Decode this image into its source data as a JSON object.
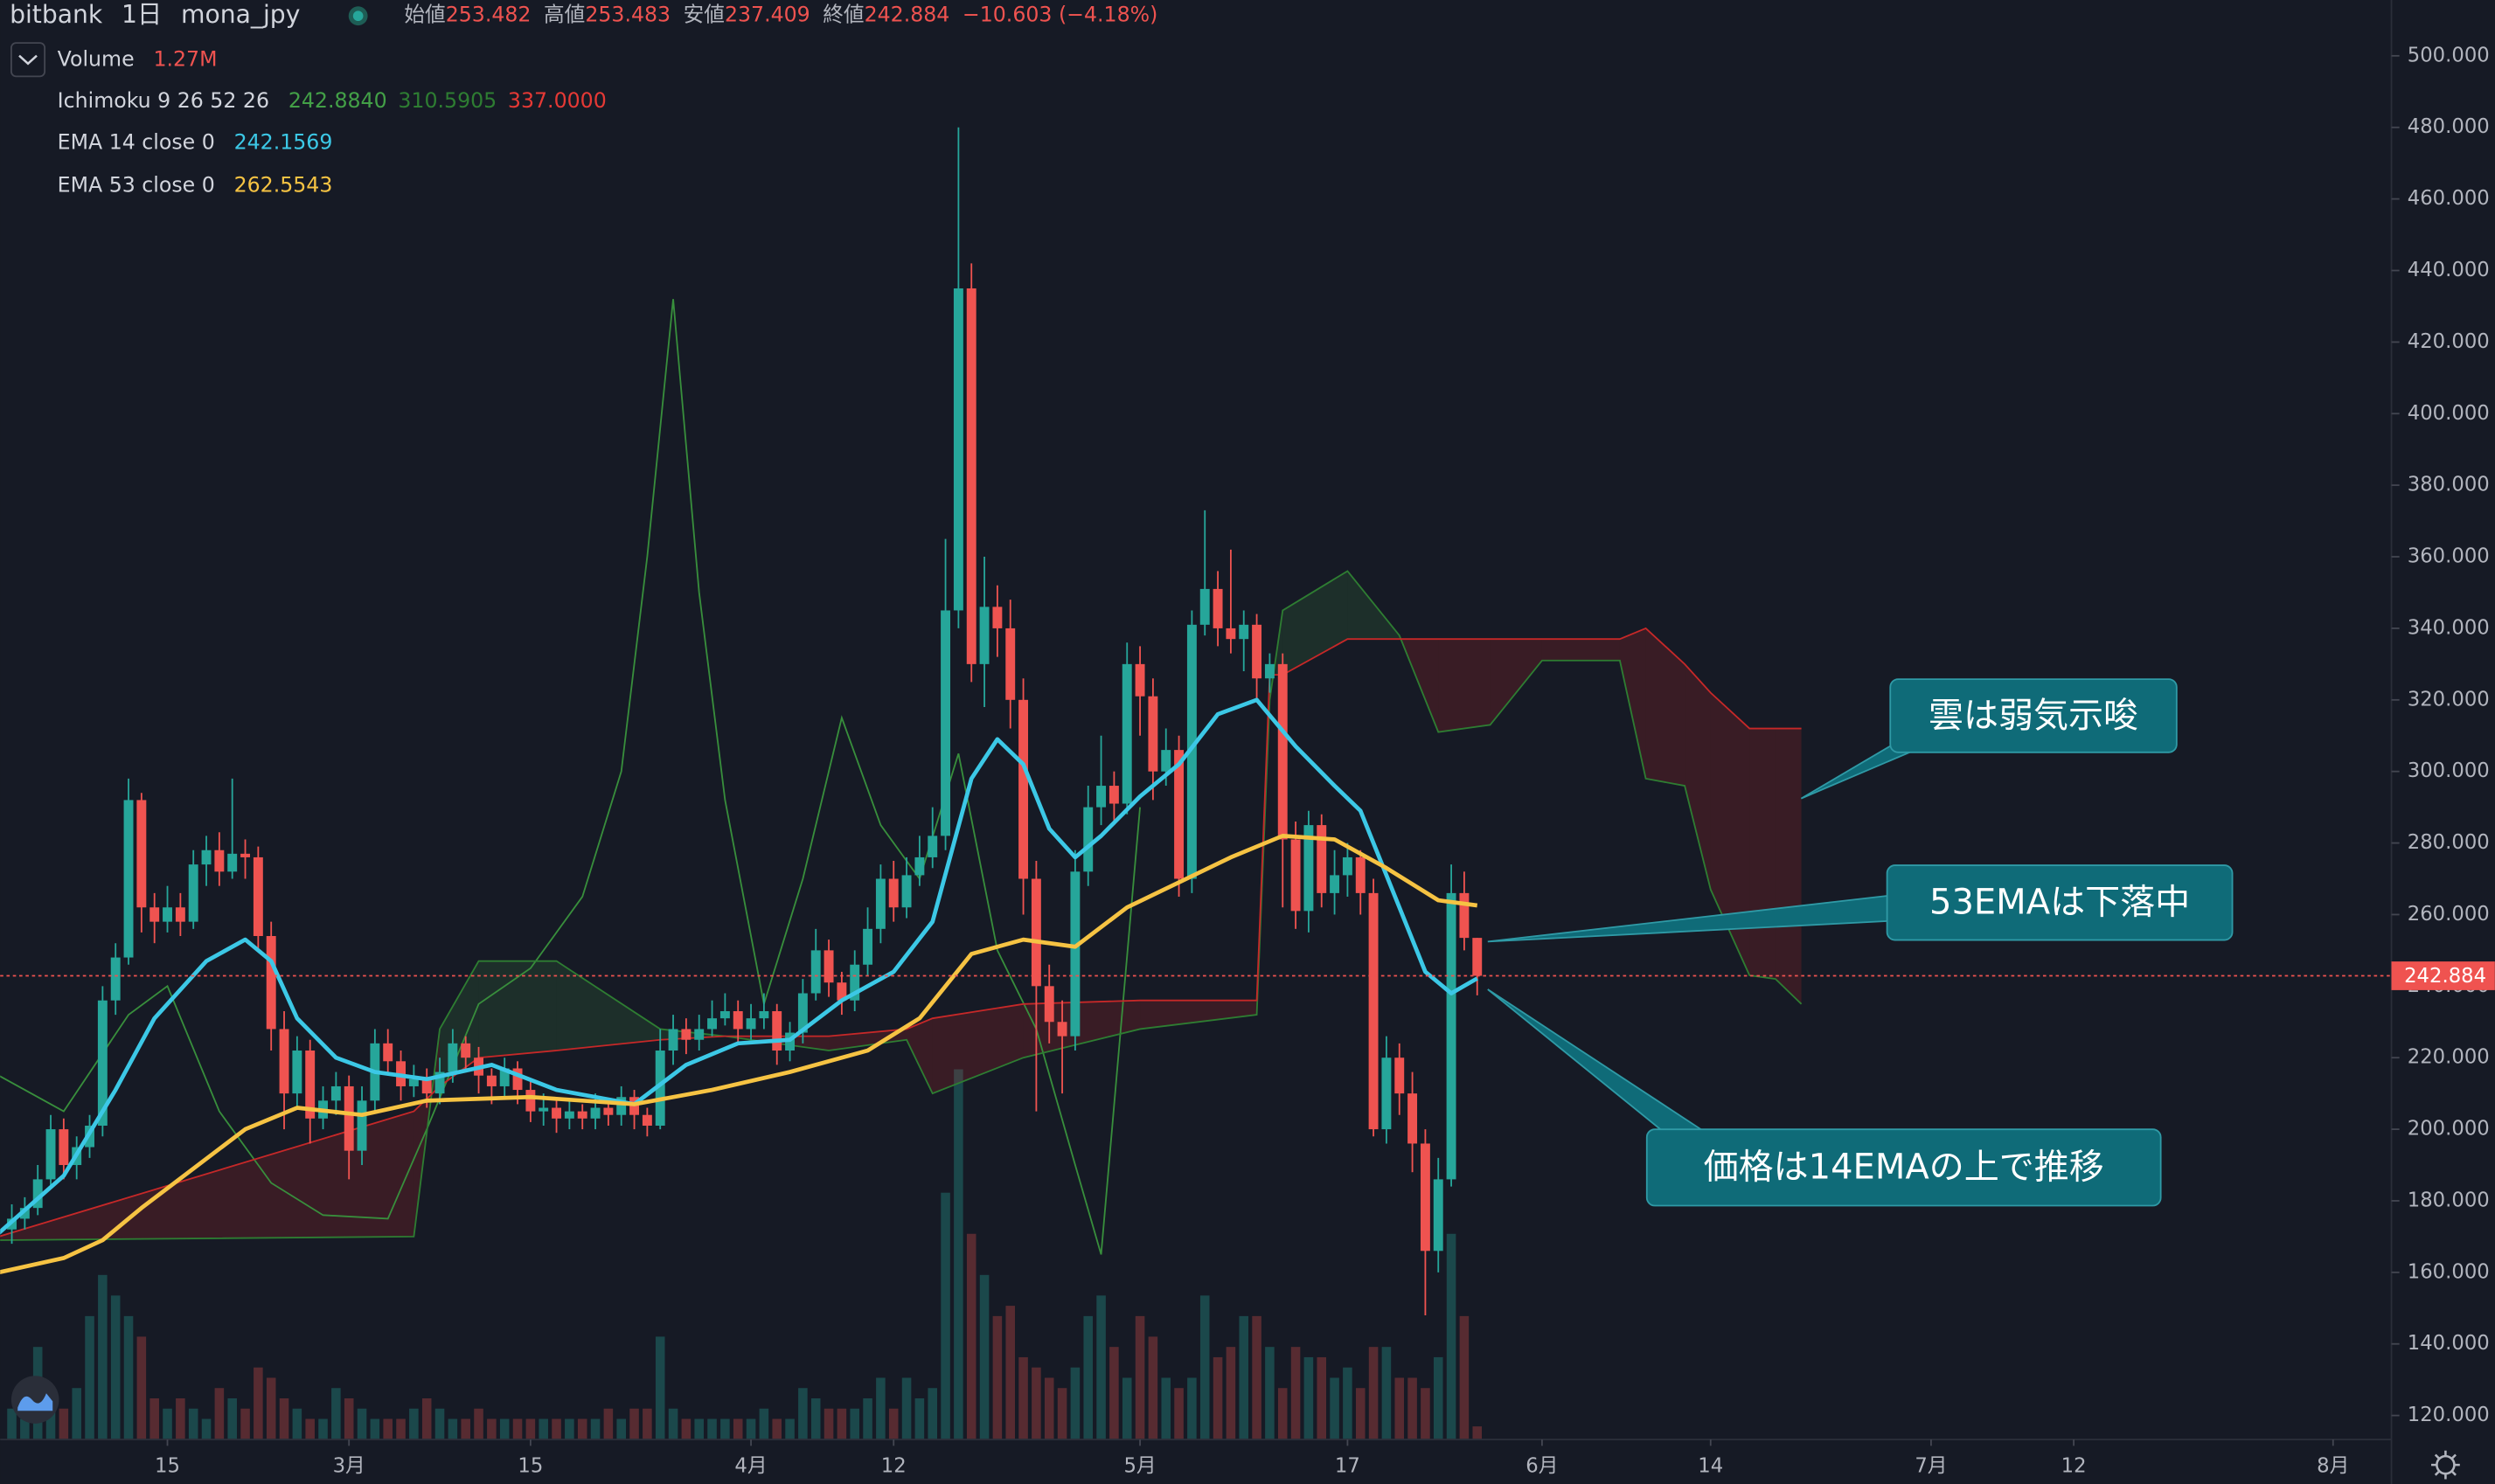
{
  "chart_data": {
    "type": "candlestick",
    "header": {
      "exchange": "bitbank",
      "interval": "1日",
      "symbol": "mona_jpy",
      "open_label": "始値",
      "open": 253.482,
      "high_label": "高値",
      "high": 253.483,
      "low_label": "安値",
      "low": 237.409,
      "close_label": "終値",
      "close": 242.884,
      "change": "−10.603 (−4.18%)"
    },
    "legend": [
      {
        "name": "Volume",
        "values": [
          {
            "value": 1.27,
            "label": "1.27M"
          }
        ],
        "colors": [
          "#ef5350"
        ]
      },
      {
        "name": "Ichimoku 9 26 52 26",
        "values": [
          {
            "value": 242.884,
            "label": "242.8840"
          },
          310.5905,
          {
            "value": 337,
            "label": "337.0000"
          }
        ],
        "colors": [
          "#43a047",
          "#2e7d32",
          "#e53935"
        ]
      },
      {
        "name": "EMA 14 close 0",
        "values": [
          242.1569
        ],
        "colors": [
          "#3cc8e6"
        ]
      },
      {
        "name": "EMA 53 close 0",
        "values": [
          262.5543
        ],
        "colors": [
          "#f6c343"
        ]
      }
    ],
    "colors": {
      "up": "#26a69a",
      "down": "#ef5350",
      "volume_up": "rgba(38,166,154,0.33)",
      "volume_down": "rgba(239,83,80,0.3)"
    },
    "xlim": [
      -12.9,
      171.5
    ],
    "ylim": [
      113.3,
      515.6
    ],
    "y2lim": [
      0,
      140
    ],
    "xticks": [
      {
        "value": 0,
        "label": "15"
      },
      {
        "value": 14,
        "label": "3月"
      },
      {
        "value": 28,
        "label": "15"
      },
      {
        "value": 45,
        "label": "4月"
      },
      {
        "value": 56,
        "label": "12"
      },
      {
        "value": 75,
        "label": "5月"
      },
      {
        "value": 91,
        "label": "17"
      },
      {
        "value": 106,
        "label": "6月"
      },
      {
        "value": 119,
        "label": "14"
      },
      {
        "value": 136,
        "label": "7月"
      },
      {
        "value": 147,
        "label": "12"
      },
      {
        "value": 167,
        "label": "8月"
      }
    ],
    "yticks": [
      {
        "value": 120,
        "label": "120.000"
      },
      {
        "value": 140,
        "label": "140.000"
      },
      {
        "value": 160,
        "label": "160.000"
      },
      {
        "value": 180,
        "label": "180.000"
      },
      {
        "value": 200,
        "label": "200.000"
      },
      {
        "value": 220,
        "label": "220.000"
      },
      {
        "value": 240,
        "label": "240.000"
      },
      {
        "value": 260,
        "label": "260.000"
      },
      {
        "value": 280,
        "label": "280.000"
      },
      {
        "value": 300,
        "label": "300.000"
      },
      {
        "value": 320,
        "label": "320.000"
      },
      {
        "value": 340,
        "label": "340.000"
      },
      {
        "value": 360,
        "label": "360.000"
      },
      {
        "value": 380,
        "label": "380.000"
      },
      {
        "value": 400,
        "label": "400.000"
      },
      {
        "value": 420,
        "label": "420.000"
      },
      {
        "value": 440,
        "label": "440.000"
      },
      {
        "value": 460,
        "label": "460.000"
      },
      {
        "value": 480,
        "label": "480.000"
      },
      {
        "value": 500,
        "label": "500.000"
      }
    ],
    "last_price": 242.884,
    "last_price_color": "#ef5350",
    "x": [
      -12,
      -11,
      -10,
      -9,
      -8,
      -7,
      -6,
      -5,
      -4,
      -3,
      -2,
      -1,
      0,
      1,
      2,
      3,
      4,
      5,
      6,
      7,
      8,
      9,
      10,
      11,
      12,
      13,
      14,
      15,
      16,
      17,
      18,
      19,
      20,
      21,
      22,
      23,
      24,
      25,
      26,
      27,
      28,
      29,
      30,
      31,
      32,
      33,
      34,
      35,
      36,
      37,
      38,
      39,
      40,
      41,
      42,
      43,
      44,
      45,
      46,
      47,
      48,
      49,
      50,
      51,
      52,
      53,
      54,
      55,
      56,
      57,
      58,
      59,
      60,
      61,
      62,
      63,
      64,
      65,
      66,
      67,
      68,
      69,
      70,
      71,
      72,
      73,
      74,
      75,
      76,
      77,
      78,
      79,
      80,
      81,
      82,
      83,
      84,
      85,
      86,
      87,
      88,
      89,
      90,
      91,
      92,
      93,
      94,
      95,
      96,
      97,
      98,
      99,
      100,
      101
    ],
    "ohlc": [
      [
        172,
        179,
        168,
        175
      ],
      [
        175,
        181,
        172,
        178
      ],
      [
        178,
        190,
        176,
        186
      ],
      [
        186,
        204,
        184,
        200
      ],
      [
        200,
        203,
        186,
        190
      ],
      [
        190,
        198,
        186,
        195
      ],
      [
        195,
        204,
        192,
        201
      ],
      [
        201,
        240,
        198,
        236
      ],
      [
        236,
        252,
        232,
        248
      ],
      [
        248,
        298,
        246,
        292
      ],
      [
        292,
        294,
        255,
        262
      ],
      [
        262,
        266,
        252,
        258
      ],
      [
        258,
        268,
        255,
        262
      ],
      [
        262,
        266,
        254,
        258
      ],
      [
        258,
        278,
        256,
        274
      ],
      [
        274,
        282,
        268,
        278
      ],
      [
        278,
        283,
        268,
        272
      ],
      [
        272,
        298,
        270,
        277
      ],
      [
        277,
        281,
        270,
        276
      ],
      [
        276,
        279,
        250,
        254
      ],
      [
        254,
        258,
        222,
        228
      ],
      [
        228,
        233,
        200,
        210
      ],
      [
        210,
        226,
        206,
        222
      ],
      [
        222,
        225,
        196,
        203
      ],
      [
        203,
        212,
        200,
        208
      ],
      [
        208,
        216,
        204,
        212
      ],
      [
        212,
        215,
        186,
        194
      ],
      [
        194,
        212,
        190,
        208
      ],
      [
        208,
        228,
        205,
        224
      ],
      [
        224,
        228,
        215,
        219
      ],
      [
        219,
        222,
        208,
        212
      ],
      [
        212,
        218,
        209,
        214
      ],
      [
        214,
        217,
        206,
        210
      ],
      [
        210,
        220,
        207,
        216
      ],
      [
        216,
        228,
        213,
        224
      ],
      [
        224,
        226,
        216,
        220
      ],
      [
        220,
        223,
        210,
        215
      ],
      [
        215,
        217,
        207,
        212
      ],
      [
        212,
        220,
        209,
        217
      ],
      [
        217,
        219,
        207,
        211
      ],
      [
        211,
        214,
        202,
        205
      ],
      [
        205,
        210,
        201,
        206
      ],
      [
        206,
        208,
        199,
        203
      ],
      [
        203,
        208,
        200,
        205
      ],
      [
        205,
        207,
        200,
        203
      ],
      [
        203,
        210,
        200,
        206
      ],
      [
        206,
        208,
        201,
        204
      ],
      [
        204,
        212,
        201,
        209
      ],
      [
        209,
        211,
        200,
        204
      ],
      [
        204,
        206,
        198,
        201
      ],
      [
        201,
        228,
        200,
        222
      ],
      [
        222,
        232,
        218,
        228
      ],
      [
        228,
        231,
        221,
        225
      ],
      [
        225,
        232,
        222,
        228
      ],
      [
        228,
        236,
        226,
        231
      ],
      [
        231,
        238,
        229,
        233
      ],
      [
        233,
        236,
        224,
        228
      ],
      [
        228,
        235,
        225,
        231
      ],
      [
        231,
        238,
        228,
        233
      ],
      [
        233,
        235,
        218,
        222
      ],
      [
        222,
        230,
        219,
        227
      ],
      [
        227,
        242,
        224,
        238
      ],
      [
        238,
        256,
        236,
        250
      ],
      [
        250,
        253,
        237,
        241
      ],
      [
        241,
        244,
        232,
        236
      ],
      [
        236,
        250,
        233,
        246
      ],
      [
        246,
        262,
        243,
        256
      ],
      [
        256,
        274,
        252,
        270
      ],
      [
        270,
        275,
        258,
        262
      ],
      [
        262,
        276,
        259,
        271
      ],
      [
        271,
        282,
        268,
        276
      ],
      [
        276,
        290,
        273,
        282
      ],
      [
        282,
        365,
        278,
        345
      ],
      [
        345,
        480,
        340,
        435
      ],
      [
        435,
        442,
        325,
        330
      ],
      [
        330,
        360,
        318,
        346
      ],
      [
        346,
        352,
        332,
        340
      ],
      [
        340,
        348,
        312,
        320
      ],
      [
        320,
        326,
        260,
        270
      ],
      [
        270,
        275,
        205,
        240
      ],
      [
        240,
        246,
        224,
        230
      ],
      [
        230,
        236,
        210,
        226
      ],
      [
        226,
        278,
        222,
        272
      ],
      [
        272,
        296,
        268,
        290
      ],
      [
        290,
        310,
        285,
        296
      ],
      [
        296,
        300,
        285,
        291
      ],
      [
        291,
        336,
        288,
        330
      ],
      [
        330,
        335,
        310,
        321
      ],
      [
        321,
        326,
        292,
        300
      ],
      [
        300,
        312,
        296,
        306
      ],
      [
        306,
        310,
        265,
        270
      ],
      [
        270,
        345,
        266,
        341
      ],
      [
        341,
        373,
        338,
        351
      ],
      [
        351,
        356,
        335,
        340
      ],
      [
        340,
        362,
        333,
        337
      ],
      [
        337,
        345,
        328,
        341
      ],
      [
        341,
        344,
        320,
        326
      ],
      [
        326,
        333,
        322,
        330
      ],
      [
        330,
        333,
        262,
        281
      ],
      [
        281,
        286,
        256,
        261
      ],
      [
        261,
        289,
        255,
        285
      ],
      [
        285,
        288,
        262,
        266
      ],
      [
        266,
        278,
        260,
        271
      ],
      [
        271,
        280,
        265,
        276
      ],
      [
        276,
        278,
        260,
        266
      ],
      [
        266,
        270,
        198,
        200
      ],
      [
        200,
        226,
        196,
        220
      ],
      [
        220,
        224,
        204,
        210
      ],
      [
        210,
        216,
        188,
        196
      ],
      [
        196,
        200,
        148,
        166
      ],
      [
        166,
        192,
        160,
        186
      ],
      [
        186,
        274,
        184,
        266
      ],
      [
        266,
        272,
        250,
        253.482
      ],
      [
        253.482,
        253.483,
        237.409,
        242.884
      ]
    ],
    "volume": [
      3,
      2,
      9,
      4,
      3,
      5,
      12,
      16,
      14,
      12,
      10,
      4,
      3,
      4,
      3,
      2,
      5,
      4,
      3,
      7,
      6,
      4,
      3,
      2,
      2,
      5,
      4,
      3,
      2,
      2,
      2,
      3,
      4,
      3,
      2,
      2,
      3,
      2,
      2,
      2,
      2,
      2,
      2,
      2,
      2,
      2,
      3,
      2,
      3,
      3,
      10,
      3,
      2,
      2,
      2,
      2,
      2,
      2,
      3,
      2,
      2,
      5,
      4,
      3,
      3,
      3,
      4,
      6,
      3,
      6,
      4,
      5,
      24,
      36,
      20,
      16,
      12,
      13,
      8,
      7,
      6,
      5,
      7,
      12,
      14,
      9,
      6,
      12,
      10,
      6,
      5,
      6,
      14,
      8,
      9,
      12,
      12,
      9,
      5,
      9,
      8,
      8,
      6,
      7,
      5,
      9,
      9,
      6,
      6,
      5,
      8,
      20,
      12,
      1.27
    ],
    "ichimoku": {
      "x": [
        -13,
        19,
        21,
        24,
        30,
        38,
        43,
        51,
        57,
        59,
        66,
        75,
        84,
        85,
        86,
        91,
        95,
        98,
        102,
        106,
        112,
        114,
        117,
        119,
        122,
        124,
        126
      ],
      "span_a": [
        169,
        170,
        228,
        247,
        247,
        228,
        226,
        222,
        225,
        210,
        220,
        228,
        232,
        320,
        345,
        356,
        338,
        311,
        313,
        331,
        331,
        298,
        296,
        267,
        243,
        242,
        235
      ],
      "span_b": [
        170,
        205,
        212,
        220,
        222,
        225,
        226,
        226,
        228,
        231,
        235,
        236,
        236,
        327,
        327,
        337,
        337,
        337,
        337,
        337,
        337,
        340,
        330,
        322,
        312,
        312,
        312
      ],
      "lagging_x": [
        -13,
        -8,
        -3,
        0,
        4,
        8,
        12,
        17,
        20,
        24,
        28,
        32,
        35,
        37,
        39,
        41,
        43,
        46,
        49,
        52,
        55,
        58,
        61,
        64,
        67,
        70,
        72,
        75
      ],
      "lagging": [
        215,
        205,
        232,
        240,
        205,
        185,
        176,
        175,
        200,
        235,
        245,
        265,
        300,
        360,
        432,
        350,
        292,
        235,
        270,
        315,
        285,
        270,
        305,
        250,
        228,
        190,
        165,
        290
      ],
      "span_a_color": "#2e7d32",
      "span_b_color": "#c62828",
      "lagging_color": "#388e3c",
      "cloud_up": "rgba(67,160,71,0.16)",
      "cloud_down": "rgba(198,40,40,0.2)"
    },
    "series": [
      {
        "name": "EMA 14 close 0",
        "color": "#3cc8e6",
        "x": [
          -13,
          -8,
          -4,
          -1,
          3,
          6,
          8,
          10,
          13,
          16,
          20,
          25,
          30,
          36,
          40,
          44,
          48,
          52,
          56,
          59,
          62,
          64,
          66,
          68,
          70,
          72,
          75,
          78,
          81,
          84,
          87,
          90,
          92,
          95,
          97,
          99,
          101
        ],
        "values": [
          171,
          187,
          211,
          231,
          247,
          253,
          247,
          231,
          220,
          216,
          214,
          218,
          211,
          207,
          218,
          224,
          225,
          236,
          244,
          258,
          298,
          309,
          302,
          284,
          276,
          282,
          293,
          302,
          316,
          320,
          307,
          296,
          289,
          262,
          244,
          238,
          242.1569
        ]
      },
      {
        "name": "EMA 53 close 0",
        "color": "#f6c343",
        "x": [
          -13,
          -8,
          -5,
          -2,
          2,
          6,
          10,
          15,
          20,
          28,
          36,
          42,
          48,
          54,
          58,
          62,
          66,
          70,
          74,
          78,
          82,
          86,
          90,
          94,
          98,
          101
        ],
        "values": [
          160,
          164,
          169,
          178,
          189,
          200,
          206,
          204,
          208,
          209,
          207,
          211,
          216,
          222,
          231,
          249,
          253,
          251,
          262,
          269,
          276,
          282,
          281,
          273,
          264,
          262.5543
        ]
      }
    ],
    "annotations": [
      "雲は弱気示唆",
      "53EMAは下落中",
      "価格は14EMAの上で推移"
    ]
  }
}
